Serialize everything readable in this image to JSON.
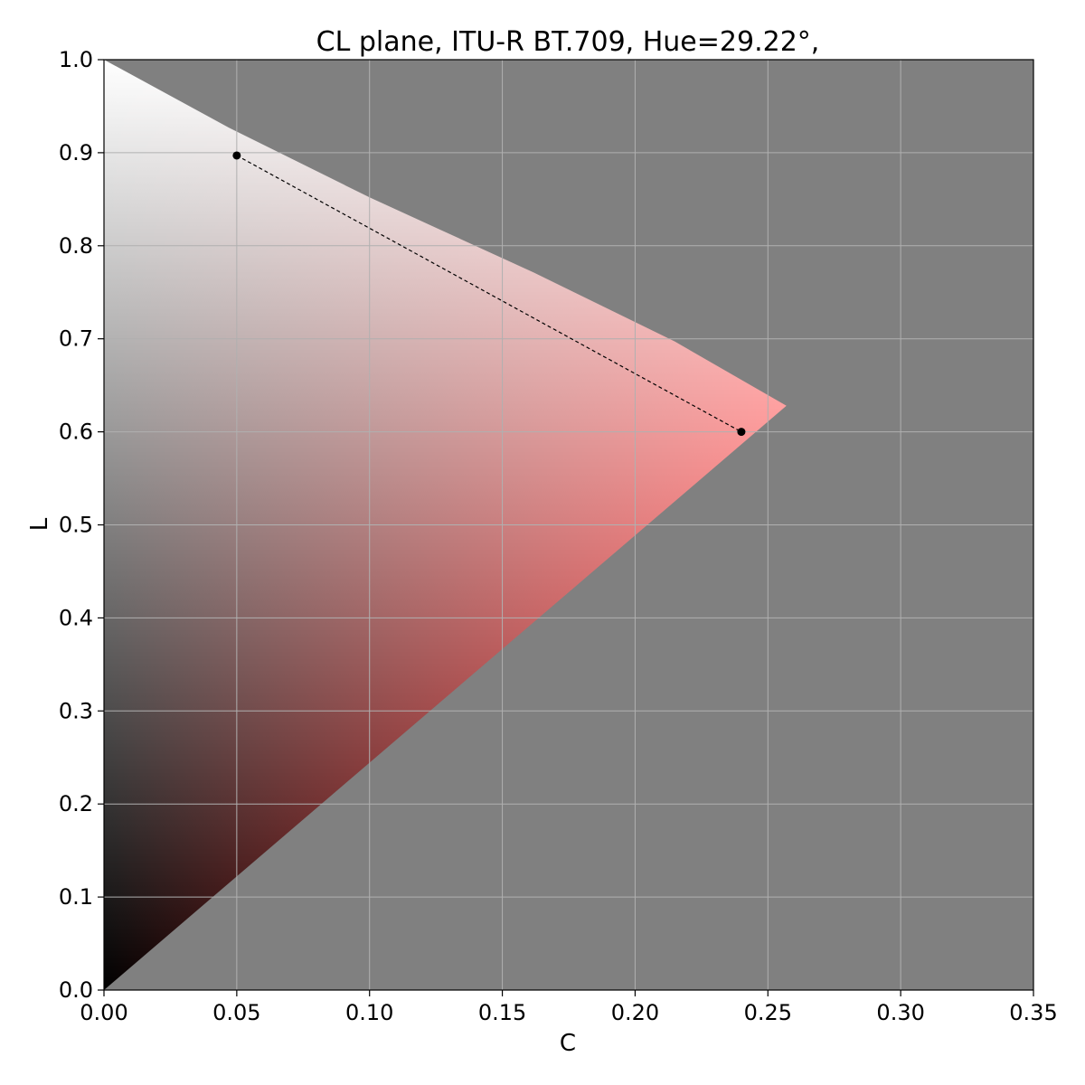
{
  "chart_data": {
    "type": "scatter",
    "title": "CL plane,  ITU-R BT.709,  Hue=29.22°,",
    "xlabel": "C",
    "ylabel": "L",
    "xlim": [
      0.0,
      0.35
    ],
    "ylim": [
      0.0,
      1.0
    ],
    "x_ticks": [
      "0.00",
      "0.05",
      "0.10",
      "0.15",
      "0.20",
      "0.25",
      "0.30",
      "0.35"
    ],
    "y_ticks": [
      "0.0",
      "0.1",
      "0.2",
      "0.3",
      "0.4",
      "0.5",
      "0.6",
      "0.7",
      "0.8",
      "0.9",
      "1.0"
    ],
    "grid": true,
    "background_color": "#808080",
    "gamut_boundary": [
      {
        "C": 0.0,
        "L": 0.0
      },
      {
        "C": 0.257,
        "L": 0.628
      },
      {
        "C": 0.215,
        "L": 0.697
      },
      {
        "C": 0.162,
        "L": 0.771
      },
      {
        "C": 0.1,
        "L": 0.852
      },
      {
        "C": 0.047,
        "L": 0.927
      },
      {
        "C": 0.0,
        "L": 1.0
      }
    ],
    "gamut_colors": {
      "white": "#ffffff",
      "black": "#000000",
      "cusp": "#ff0000"
    },
    "series": [
      {
        "points": [
          {
            "C": 0.05,
            "L": 0.897
          },
          {
            "C": 0.24,
            "L": 0.6
          }
        ],
        "line_style": "dashed",
        "color": "#000000"
      }
    ]
  }
}
